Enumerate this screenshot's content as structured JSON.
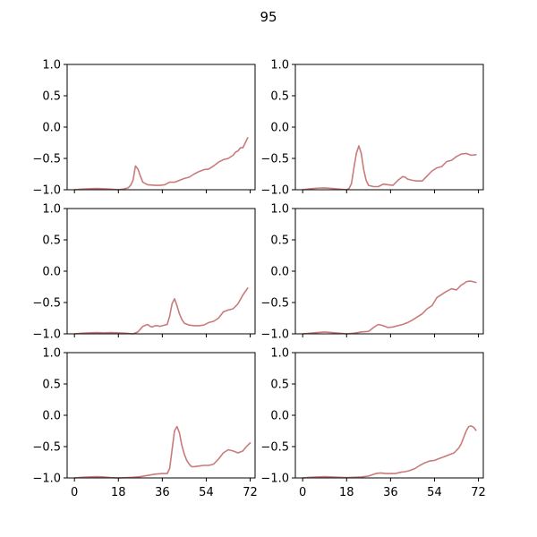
{
  "chart_data": {
    "type": "line",
    "title": "95",
    "layout": "3x2 grid",
    "sharex": true,
    "xlim": [
      -3,
      74
    ],
    "ylim": [
      -1.0,
      1.0
    ],
    "xticks": [
      0,
      18,
      36,
      54,
      72
    ],
    "xtick_labels": [
      "0",
      "18",
      "36",
      "54",
      "72"
    ],
    "yticks": [
      -1.0,
      -0.5,
      0.0,
      0.5,
      1.0
    ],
    "ytick_labels": [
      "−1.0",
      "−0.5",
      "0.0",
      "0.5",
      "1.0"
    ],
    "line_color": "#c97b7b",
    "grid": false,
    "panels": [
      {
        "x": [
          0,
          3,
          6,
          9,
          12,
          15,
          18,
          20,
          22,
          23,
          24,
          25,
          26,
          27,
          28,
          30,
          33,
          35,
          37,
          39,
          41,
          43,
          45,
          47,
          49,
          51,
          53,
          55,
          57,
          59,
          61,
          63,
          65,
          66,
          67,
          68,
          69,
          70,
          71
        ],
        "y": [
          -1.0,
          -0.99,
          -0.985,
          -0.98,
          -0.985,
          -0.99,
          -1.0,
          -0.99,
          -0.97,
          -0.93,
          -0.85,
          -0.62,
          -0.67,
          -0.78,
          -0.88,
          -0.92,
          -0.93,
          -0.93,
          -0.92,
          -0.88,
          -0.88,
          -0.85,
          -0.82,
          -0.8,
          -0.75,
          -0.71,
          -0.68,
          -0.67,
          -0.62,
          -0.56,
          -0.52,
          -0.5,
          -0.45,
          -0.4,
          -0.38,
          -0.33,
          -0.33,
          -0.25,
          -0.17
        ]
      },
      {
        "x": [
          0,
          3,
          6,
          9,
          12,
          15,
          18,
          19,
          20,
          21,
          22,
          23,
          24,
          25,
          26,
          27,
          29,
          31,
          33,
          35,
          37,
          39,
          41,
          42,
          43,
          45,
          47,
          49,
          51,
          53,
          55,
          57,
          59,
          61,
          63,
          65,
          67,
          69,
          71
        ],
        "y": [
          -1.0,
          -0.985,
          -0.975,
          -0.97,
          -0.98,
          -0.99,
          -1.0,
          -0.98,
          -0.9,
          -0.65,
          -0.42,
          -0.3,
          -0.42,
          -0.68,
          -0.85,
          -0.93,
          -0.95,
          -0.95,
          -0.91,
          -0.92,
          -0.93,
          -0.85,
          -0.79,
          -0.8,
          -0.83,
          -0.85,
          -0.86,
          -0.86,
          -0.78,
          -0.7,
          -0.65,
          -0.63,
          -0.55,
          -0.53,
          -0.47,
          -0.43,
          -0.42,
          -0.45,
          -0.44
        ]
      },
      {
        "x": [
          0,
          3,
          6,
          9,
          12,
          15,
          18,
          21,
          24,
          26,
          28,
          30,
          31,
          32,
          33,
          34,
          35,
          36,
          38,
          39,
          40,
          41,
          42,
          43,
          44,
          45,
          47,
          49,
          51,
          53,
          55,
          57,
          59,
          61,
          63,
          65,
          67,
          69,
          71
        ],
        "y": [
          -1.0,
          -0.99,
          -0.985,
          -0.98,
          -0.985,
          -0.98,
          -0.985,
          -0.99,
          -1.0,
          -0.97,
          -0.88,
          -0.85,
          -0.88,
          -0.89,
          -0.87,
          -0.87,
          -0.88,
          -0.87,
          -0.85,
          -0.72,
          -0.52,
          -0.44,
          -0.55,
          -0.68,
          -0.77,
          -0.83,
          -0.86,
          -0.87,
          -0.87,
          -0.86,
          -0.82,
          -0.8,
          -0.75,
          -0.65,
          -0.62,
          -0.6,
          -0.52,
          -0.38,
          -0.27
        ]
      },
      {
        "x": [
          0,
          3,
          6,
          9,
          12,
          15,
          18,
          21,
          24,
          27,
          29,
          31,
          33,
          35,
          37,
          39,
          41,
          43,
          45,
          47,
          49,
          51,
          53,
          55,
          57,
          59,
          61,
          63,
          65,
          66,
          67,
          68,
          69,
          70,
          71
        ],
        "y": [
          -1.0,
          -0.99,
          -0.98,
          -0.97,
          -0.98,
          -0.99,
          -1.0,
          -0.99,
          -0.97,
          -0.96,
          -0.9,
          -0.85,
          -0.87,
          -0.9,
          -0.89,
          -0.87,
          -0.85,
          -0.82,
          -0.78,
          -0.73,
          -0.68,
          -0.6,
          -0.55,
          -0.42,
          -0.37,
          -0.32,
          -0.28,
          -0.3,
          -0.22,
          -0.2,
          -0.17,
          -0.16,
          -0.16,
          -0.17,
          -0.18
        ]
      },
      {
        "x": [
          0,
          3,
          6,
          9,
          12,
          15,
          18,
          21,
          24,
          27,
          30,
          33,
          36,
          38,
          39,
          40,
          41,
          42,
          43,
          44,
          45,
          46,
          47,
          48,
          49,
          51,
          53,
          55,
          57,
          59,
          61,
          63,
          65,
          67,
          69,
          70,
          71,
          72
        ],
        "y": [
          -1.0,
          -0.99,
          -0.985,
          -0.98,
          -0.985,
          -0.995,
          -1.0,
          -0.995,
          -0.99,
          -0.98,
          -0.96,
          -0.94,
          -0.93,
          -0.93,
          -0.85,
          -0.55,
          -0.25,
          -0.18,
          -0.28,
          -0.48,
          -0.62,
          -0.72,
          -0.78,
          -0.82,
          -0.82,
          -0.81,
          -0.8,
          -0.8,
          -0.78,
          -0.7,
          -0.6,
          -0.55,
          -0.57,
          -0.6,
          -0.57,
          -0.52,
          -0.48,
          -0.44
        ]
      },
      {
        "x": [
          0,
          3,
          6,
          9,
          12,
          15,
          18,
          21,
          24,
          27,
          30,
          32,
          34,
          36,
          38,
          40,
          42,
          44,
          46,
          48,
          50,
          52,
          54,
          56,
          58,
          60,
          62,
          64,
          65,
          66,
          67,
          68,
          69,
          70,
          71
        ],
        "y": [
          -1.0,
          -0.99,
          -0.985,
          -0.98,
          -0.985,
          -0.99,
          -0.995,
          -0.99,
          -0.985,
          -0.97,
          -0.93,
          -0.92,
          -0.93,
          -0.93,
          -0.93,
          -0.91,
          -0.9,
          -0.88,
          -0.85,
          -0.8,
          -0.76,
          -0.73,
          -0.72,
          -0.69,
          -0.66,
          -0.63,
          -0.6,
          -0.52,
          -0.45,
          -0.35,
          -0.25,
          -0.18,
          -0.17,
          -0.19,
          -0.24
        ]
      }
    ]
  }
}
